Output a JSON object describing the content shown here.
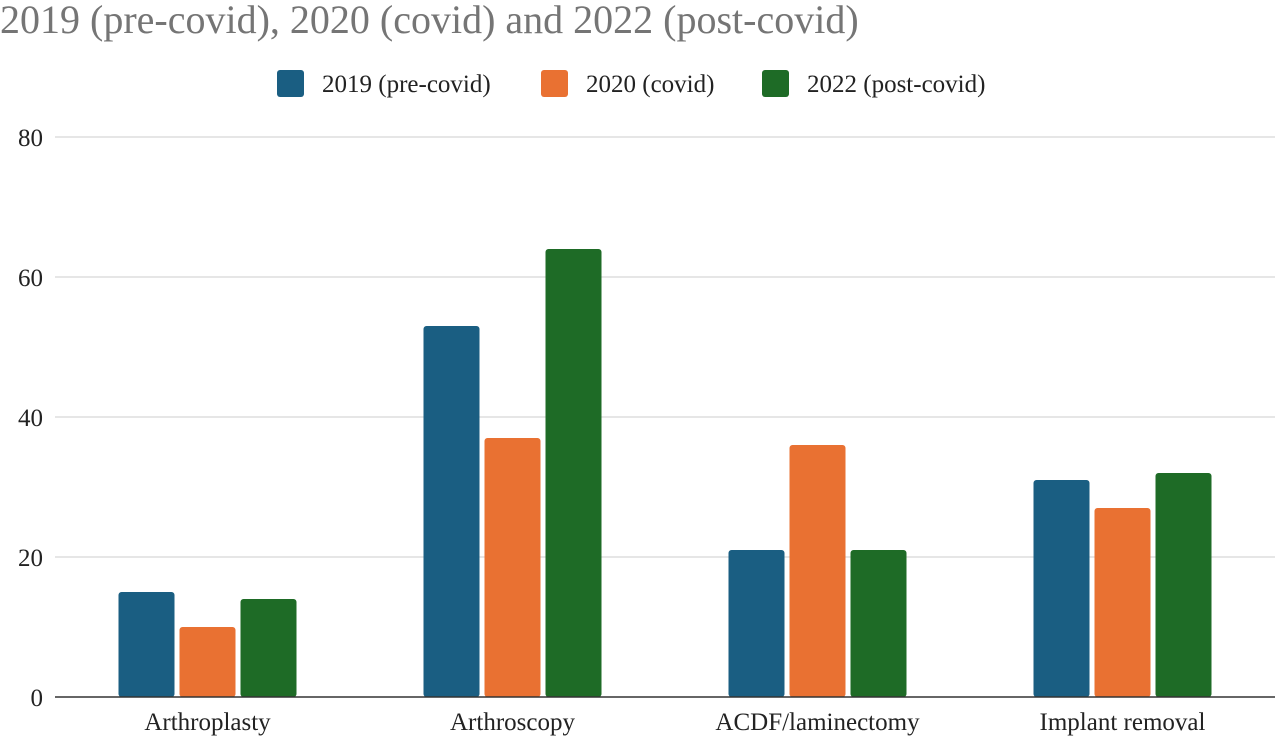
{
  "chart_data": {
    "type": "bar",
    "title": "2019 (pre-covid), 2020 (covid) and 2022 (post-covid)",
    "xlabel": "",
    "ylabel": "",
    "categories": [
      "Arthroplasty",
      "Arthroscopy",
      "ACDF/laminectomy",
      "Implant removal"
    ],
    "series": [
      {
        "name": "2019 (pre-covid)",
        "color": "#1a5e82",
        "values": [
          15,
          53,
          21,
          31
        ]
      },
      {
        "name": "2020 (covid)",
        "color": "#e97132",
        "values": [
          10,
          37,
          36,
          27
        ]
      },
      {
        "name": "2022 (post-covid)",
        "color": "#1e6b26",
        "values": [
          14,
          64,
          21,
          32
        ]
      }
    ],
    "ylim": [
      0,
      80
    ],
    "yticks": [
      "0",
      "20",
      "40",
      "60",
      "80"
    ],
    "grid": true,
    "legend_position": "top"
  }
}
